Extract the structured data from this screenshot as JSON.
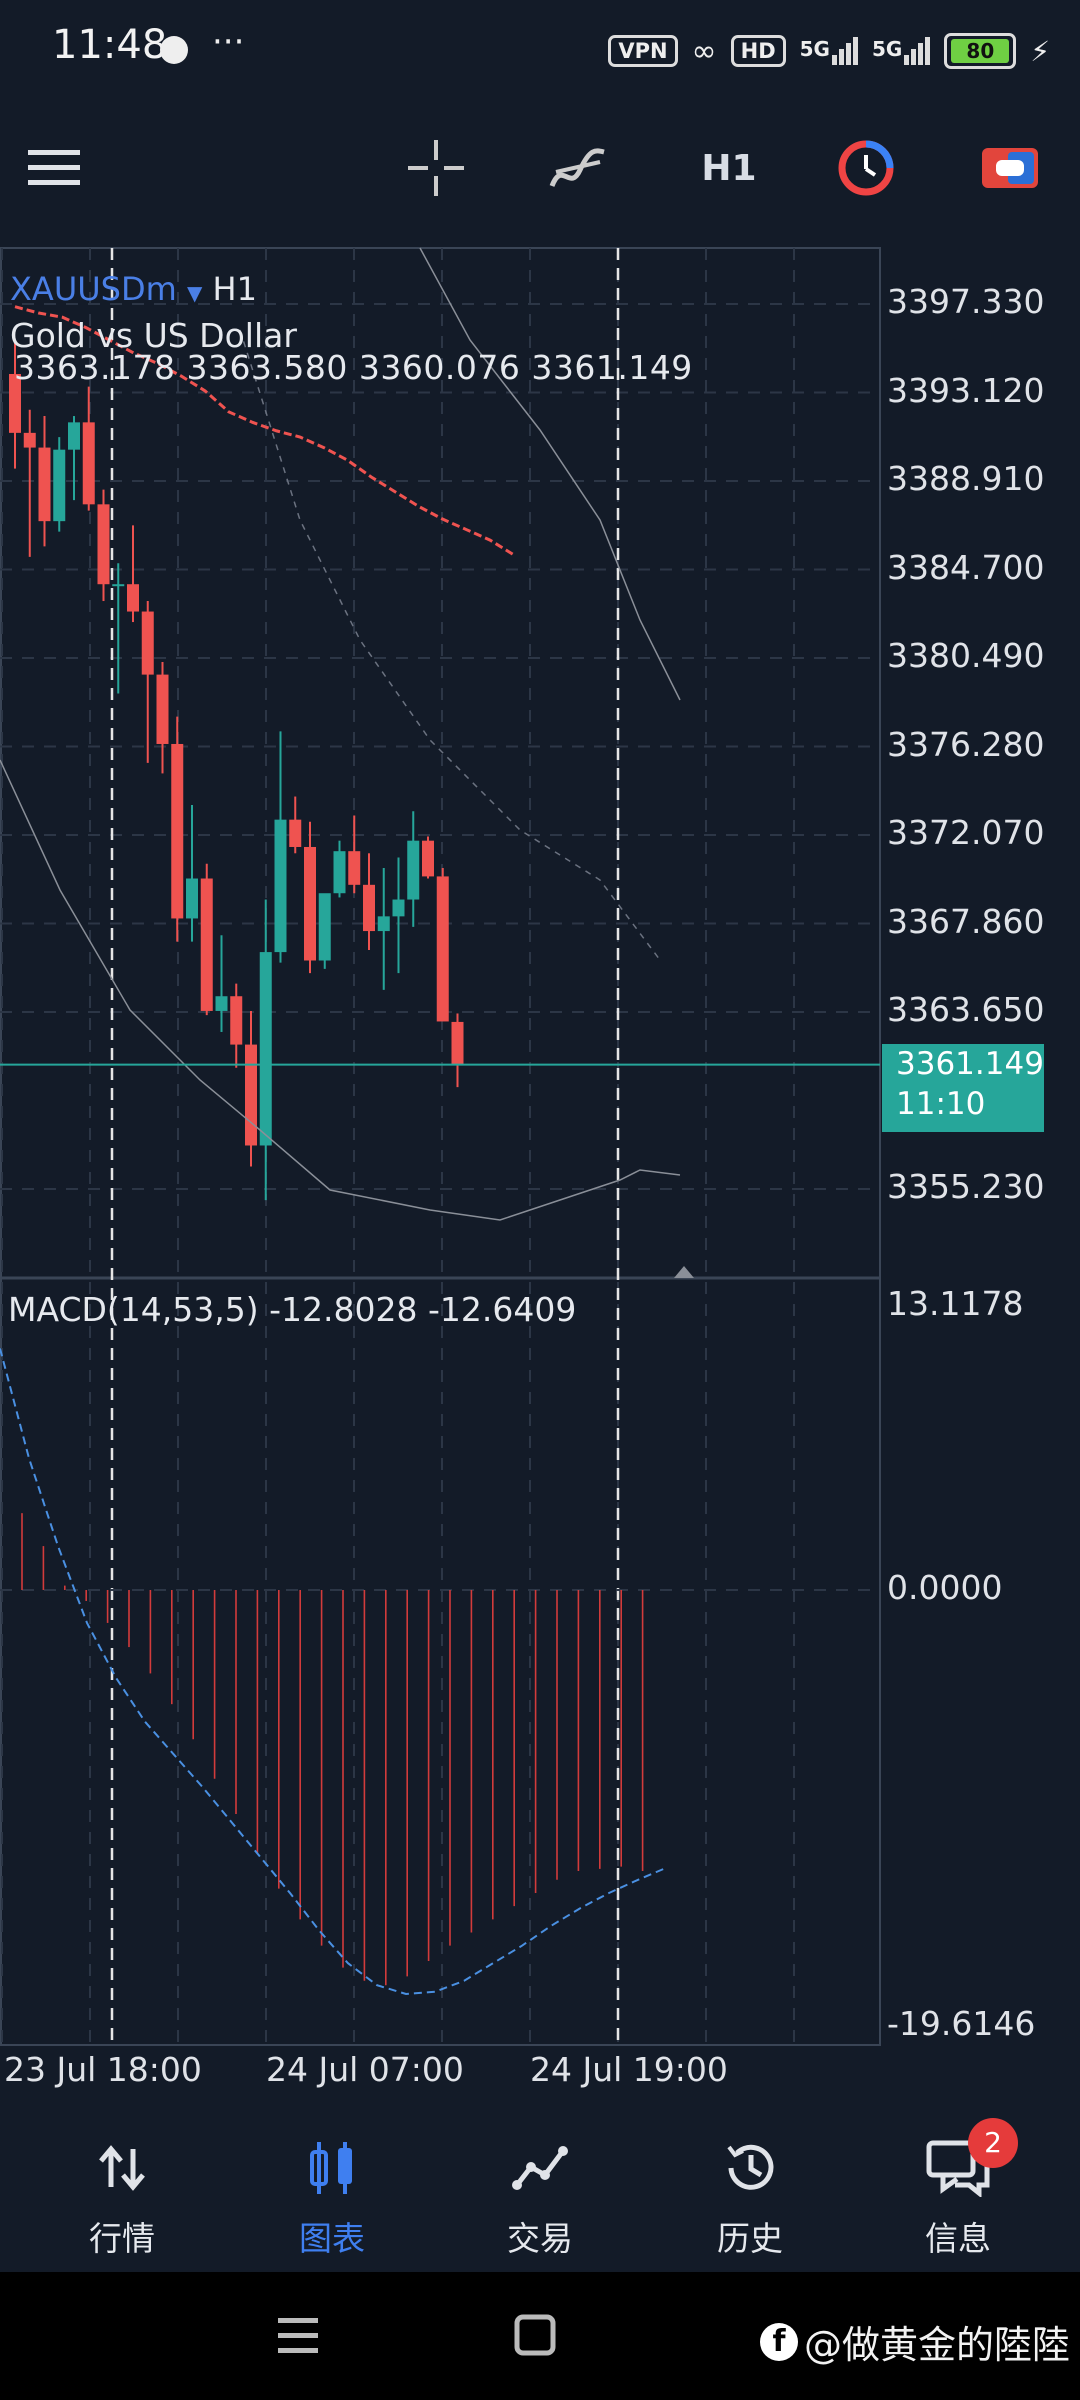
{
  "status_bar": {
    "time": "11:48",
    "more": "···",
    "vpn": "VPN",
    "hd": "HD",
    "signal1": "5G",
    "signal2": "5G",
    "battery": "80"
  },
  "toolbar": {
    "timeframe": "H1"
  },
  "chart": {
    "symbol": "XAUUSDm",
    "timeframe": "H1",
    "description": "Gold vs US Dollar",
    "ohlc": "3363.178 3363.580 3360.076 3361.149",
    "price_axis": [
      "3397.330",
      "3393.120",
      "3388.910",
      "3384.700",
      "3380.490",
      "3376.280",
      "3372.070",
      "3367.860",
      "3363.650",
      "3355.230"
    ],
    "current_price": "3361.149",
    "current_time": "11:10",
    "macd_label": "MACD(14,53,5) -12.8028 -12.6409",
    "macd_axis": [
      "13.1178",
      "0.0000",
      "-19.6146"
    ],
    "time_axis": [
      "23 Jul 18:00",
      "24 Jul 07:00",
      "24 Jul 19:00"
    ],
    "colors": {
      "up": "#26a69a",
      "down": "#ef5350",
      "ma": "#ef5350",
      "signal": "#4a90e2",
      "background": "#131b28"
    }
  },
  "bottom_nav": {
    "items": [
      {
        "label": "行情",
        "icon": "quotes-icon"
      },
      {
        "label": "图表",
        "icon": "chart-icon",
        "active": true
      },
      {
        "label": "交易",
        "icon": "trade-icon"
      },
      {
        "label": "历史",
        "icon": "history-icon"
      },
      {
        "label": "信息",
        "icon": "messages-icon",
        "badge": "2"
      }
    ]
  },
  "watermark": "@做黄金的陸陸"
}
